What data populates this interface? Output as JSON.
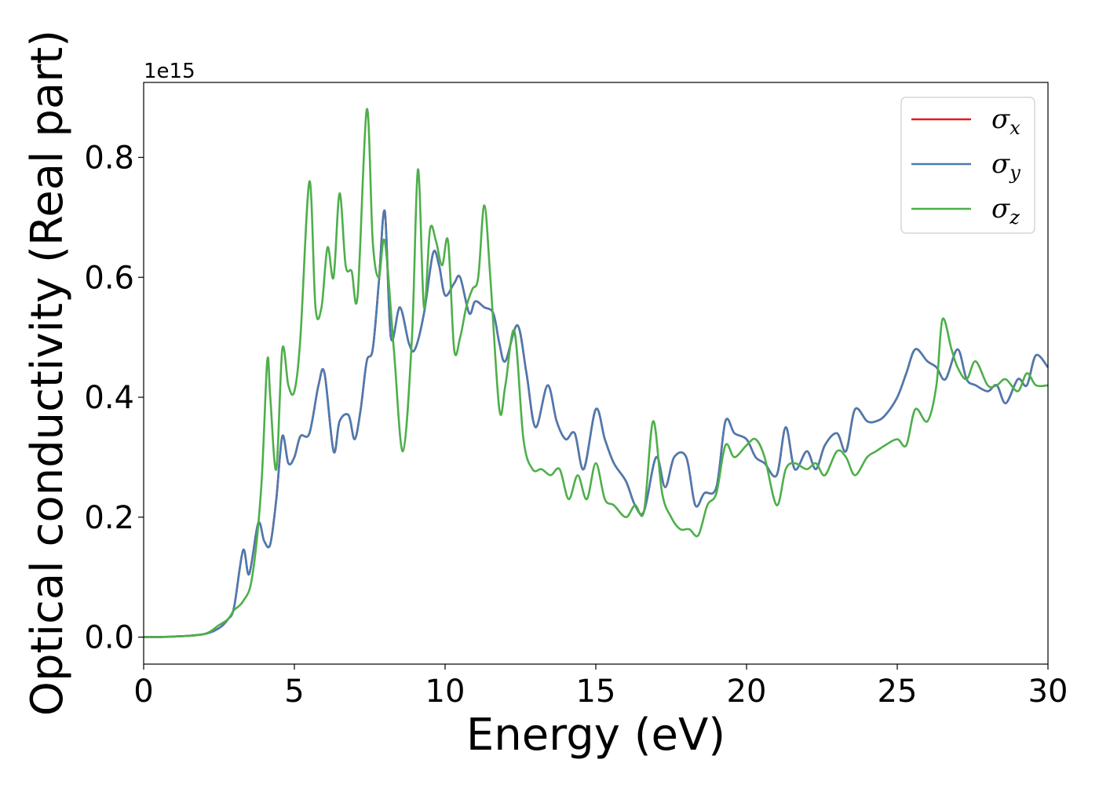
{
  "chart_data": {
    "type": "line",
    "xlabel": "Energy (eV)",
    "ylabel": "Optical conductivity (Real part)",
    "y_offset_label": "1e15",
    "xlim": [
      0,
      30
    ],
    "ylim": [
      -0.045,
      0.925
    ],
    "x_ticks": [
      0,
      5,
      10,
      15,
      20,
      25,
      30
    ],
    "x_tick_labels": [
      "0",
      "5",
      "10",
      "15",
      "20",
      "25",
      "30"
    ],
    "y_ticks": [
      0.0,
      0.2,
      0.4,
      0.6,
      0.8
    ],
    "y_tick_labels": [
      "0.0",
      "0.2",
      "0.4",
      "0.6",
      "0.8"
    ],
    "grid": false,
    "legend_position": "top-right",
    "series": [
      {
        "name": "σx",
        "symbol": "σ",
        "subscript": "x",
        "color": "#e41a1c",
        "x": [
          0,
          1,
          2,
          2.5,
          2.8,
          3.0,
          3.3,
          3.5,
          3.8,
          4.0,
          4.2,
          4.4,
          4.6,
          4.8,
          5.0,
          5.2,
          5.5,
          5.8,
          6.0,
          6.3,
          6.5,
          6.8,
          7.0,
          7.2,
          7.4,
          7.6,
          7.8,
          8.0,
          8.2,
          8.5,
          8.8,
          9.0,
          9.3,
          9.6,
          9.8,
          10.0,
          10.3,
          10.5,
          10.8,
          11.0,
          11.3,
          11.6,
          11.8,
          12.0,
          12.4,
          12.7,
          13.0,
          13.4,
          13.7,
          14.0,
          14.3,
          14.6,
          15.0,
          15.3,
          15.6,
          16.0,
          16.3,
          16.6,
          17.0,
          17.3,
          17.6,
          18.0,
          18.3,
          18.6,
          19.0,
          19.3,
          19.6,
          20.0,
          20.3,
          20.6,
          21.0,
          21.3,
          21.6,
          22.0,
          22.3,
          22.6,
          23.0,
          23.3,
          23.6,
          24.0,
          24.3,
          24.6,
          25.0,
          25.3,
          25.6,
          26.0,
          26.3,
          26.6,
          27.0,
          27.3,
          27.6,
          28.0,
          28.3,
          28.6,
          29.0,
          29.3,
          29.6,
          30.0
        ],
        "y": [
          0.0,
          0.001,
          0.005,
          0.015,
          0.03,
          0.05,
          0.145,
          0.105,
          0.19,
          0.16,
          0.155,
          0.23,
          0.335,
          0.29,
          0.3,
          0.335,
          0.34,
          0.42,
          0.44,
          0.31,
          0.36,
          0.37,
          0.33,
          0.38,
          0.46,
          0.48,
          0.59,
          0.71,
          0.5,
          0.55,
          0.49,
          0.48,
          0.54,
          0.64,
          0.62,
          0.57,
          0.59,
          0.6,
          0.54,
          0.56,
          0.55,
          0.54,
          0.49,
          0.46,
          0.52,
          0.44,
          0.35,
          0.42,
          0.36,
          0.33,
          0.34,
          0.28,
          0.38,
          0.33,
          0.29,
          0.26,
          0.22,
          0.21,
          0.3,
          0.25,
          0.3,
          0.3,
          0.22,
          0.24,
          0.25,
          0.36,
          0.34,
          0.33,
          0.3,
          0.29,
          0.27,
          0.35,
          0.28,
          0.31,
          0.28,
          0.32,
          0.34,
          0.31,
          0.38,
          0.36,
          0.36,
          0.37,
          0.4,
          0.44,
          0.48,
          0.46,
          0.45,
          0.43,
          0.48,
          0.43,
          0.42,
          0.41,
          0.42,
          0.39,
          0.43,
          0.42,
          0.47,
          0.45
        ]
      },
      {
        "name": "σy",
        "symbol": "σ",
        "subscript": "y",
        "color": "#4a7bb0",
        "x": [
          0,
          1,
          2,
          2.5,
          2.8,
          3.0,
          3.3,
          3.5,
          3.8,
          4.0,
          4.2,
          4.4,
          4.6,
          4.8,
          5.0,
          5.2,
          5.5,
          5.8,
          6.0,
          6.3,
          6.5,
          6.8,
          7.0,
          7.2,
          7.4,
          7.6,
          7.8,
          8.0,
          8.2,
          8.5,
          8.8,
          9.0,
          9.3,
          9.6,
          9.8,
          10.0,
          10.3,
          10.5,
          10.8,
          11.0,
          11.3,
          11.6,
          11.8,
          12.0,
          12.4,
          12.7,
          13.0,
          13.4,
          13.7,
          14.0,
          14.3,
          14.6,
          15.0,
          15.3,
          15.6,
          16.0,
          16.3,
          16.6,
          17.0,
          17.3,
          17.6,
          18.0,
          18.3,
          18.6,
          19.0,
          19.3,
          19.6,
          20.0,
          20.3,
          20.6,
          21.0,
          21.3,
          21.6,
          22.0,
          22.3,
          22.6,
          23.0,
          23.3,
          23.6,
          24.0,
          24.3,
          24.6,
          25.0,
          25.3,
          25.6,
          26.0,
          26.3,
          26.6,
          27.0,
          27.3,
          27.6,
          28.0,
          28.3,
          28.6,
          29.0,
          29.3,
          29.6,
          30.0
        ],
        "y": [
          0.0,
          0.001,
          0.005,
          0.015,
          0.03,
          0.05,
          0.145,
          0.105,
          0.19,
          0.16,
          0.155,
          0.23,
          0.335,
          0.29,
          0.3,
          0.335,
          0.34,
          0.42,
          0.44,
          0.31,
          0.36,
          0.37,
          0.33,
          0.38,
          0.46,
          0.48,
          0.59,
          0.71,
          0.5,
          0.55,
          0.49,
          0.48,
          0.54,
          0.64,
          0.62,
          0.57,
          0.59,
          0.6,
          0.54,
          0.56,
          0.55,
          0.54,
          0.49,
          0.46,
          0.52,
          0.44,
          0.35,
          0.42,
          0.36,
          0.33,
          0.34,
          0.28,
          0.38,
          0.33,
          0.29,
          0.26,
          0.22,
          0.21,
          0.3,
          0.25,
          0.3,
          0.3,
          0.22,
          0.24,
          0.25,
          0.36,
          0.34,
          0.33,
          0.3,
          0.29,
          0.27,
          0.35,
          0.28,
          0.31,
          0.28,
          0.32,
          0.34,
          0.31,
          0.38,
          0.36,
          0.36,
          0.37,
          0.4,
          0.44,
          0.48,
          0.46,
          0.45,
          0.43,
          0.48,
          0.43,
          0.42,
          0.41,
          0.42,
          0.39,
          0.43,
          0.42,
          0.47,
          0.45
        ]
      },
      {
        "name": "σz",
        "symbol": "σ",
        "subscript": "z",
        "color": "#4daf4a",
        "x": [
          0,
          1,
          2,
          2.5,
          2.8,
          3.0,
          3.3,
          3.6,
          3.9,
          4.1,
          4.2,
          4.4,
          4.6,
          4.8,
          5.0,
          5.2,
          5.5,
          5.7,
          5.9,
          6.1,
          6.3,
          6.5,
          6.7,
          6.9,
          7.1,
          7.4,
          7.6,
          7.8,
          8.0,
          8.3,
          8.6,
          8.9,
          9.1,
          9.3,
          9.5,
          9.7,
          9.9,
          10.1,
          10.3,
          10.5,
          10.7,
          10.9,
          11.1,
          11.3,
          11.5,
          11.8,
          12.0,
          12.3,
          12.6,
          12.9,
          13.2,
          13.5,
          13.8,
          14.1,
          14.4,
          14.7,
          15.0,
          15.3,
          15.6,
          16.0,
          16.3,
          16.6,
          16.9,
          17.2,
          17.5,
          17.8,
          18.1,
          18.4,
          18.7,
          19.0,
          19.3,
          19.6,
          20.0,
          20.3,
          20.6,
          21.0,
          21.3,
          21.6,
          22.0,
          22.3,
          22.6,
          23.0,
          23.3,
          23.6,
          24.0,
          24.3,
          24.6,
          25.0,
          25.3,
          25.6,
          26.0,
          26.3,
          26.5,
          26.8,
          27.0,
          27.3,
          27.6,
          28.0,
          28.3,
          28.6,
          29.0,
          29.3,
          29.6,
          30.0
        ],
        "y": [
          0.0,
          0.001,
          0.005,
          0.02,
          0.03,
          0.045,
          0.06,
          0.1,
          0.25,
          0.46,
          0.4,
          0.28,
          0.48,
          0.42,
          0.41,
          0.5,
          0.76,
          0.55,
          0.55,
          0.65,
          0.6,
          0.74,
          0.62,
          0.61,
          0.57,
          0.88,
          0.66,
          0.6,
          0.66,
          0.48,
          0.31,
          0.5,
          0.78,
          0.55,
          0.68,
          0.66,
          0.62,
          0.66,
          0.48,
          0.5,
          0.55,
          0.58,
          0.6,
          0.72,
          0.6,
          0.38,
          0.42,
          0.51,
          0.33,
          0.28,
          0.28,
          0.27,
          0.28,
          0.23,
          0.27,
          0.23,
          0.29,
          0.23,
          0.22,
          0.2,
          0.22,
          0.21,
          0.36,
          0.24,
          0.2,
          0.18,
          0.18,
          0.17,
          0.22,
          0.24,
          0.32,
          0.3,
          0.32,
          0.33,
          0.3,
          0.22,
          0.28,
          0.29,
          0.28,
          0.29,
          0.27,
          0.31,
          0.3,
          0.27,
          0.3,
          0.31,
          0.32,
          0.33,
          0.32,
          0.38,
          0.36,
          0.42,
          0.53,
          0.48,
          0.45,
          0.43,
          0.46,
          0.42,
          0.42,
          0.43,
          0.41,
          0.44,
          0.42,
          0.42
        ]
      }
    ]
  }
}
